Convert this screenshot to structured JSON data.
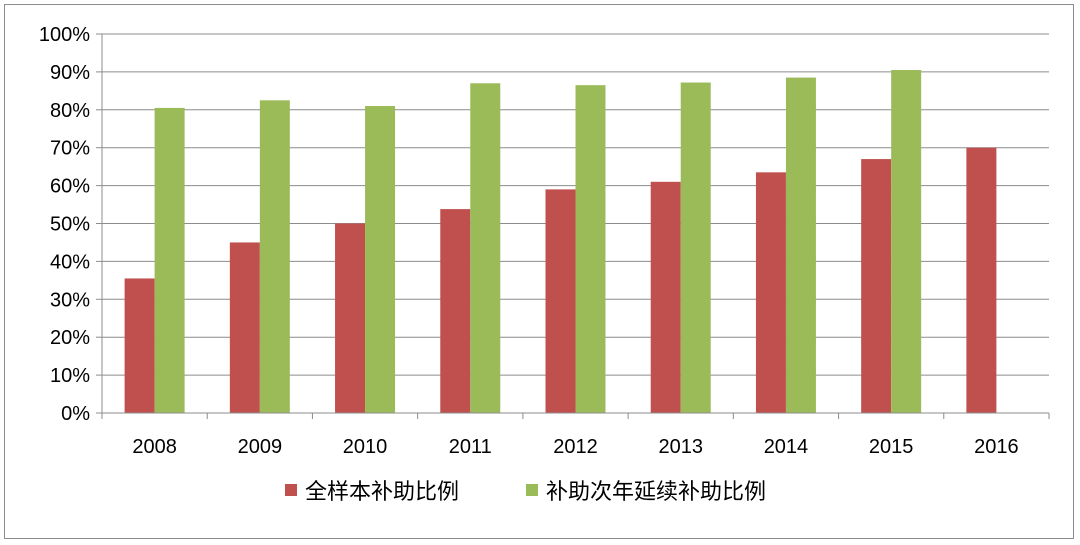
{
  "chart_data": {
    "type": "bar",
    "categories": [
      "2008",
      "2009",
      "2010",
      "2011",
      "2012",
      "2013",
      "2014",
      "2015",
      "2016"
    ],
    "series": [
      {
        "name": "全样本补助比例",
        "color": "#c0504d",
        "values": [
          35.5,
          45.0,
          50.0,
          53.8,
          59.0,
          61.0,
          63.5,
          67.0,
          70.0
        ]
      },
      {
        "name": "补助次年延续补助比例",
        "color": "#9bbb59",
        "values": [
          80.5,
          82.5,
          81.0,
          87.0,
          86.5,
          87.2,
          88.5,
          90.5,
          null
        ]
      }
    ],
    "ylim": [
      0,
      100
    ],
    "yticks": [
      0,
      10,
      20,
      30,
      40,
      50,
      60,
      70,
      80,
      90,
      100
    ],
    "ytick_labels": [
      "0%",
      "10%",
      "20%",
      "30%",
      "40%",
      "50%",
      "60%",
      "70%",
      "80%",
      "90%",
      "100%"
    ],
    "title": "",
    "xlabel": "",
    "ylabel": "",
    "grid": true,
    "legend": "bottom"
  }
}
